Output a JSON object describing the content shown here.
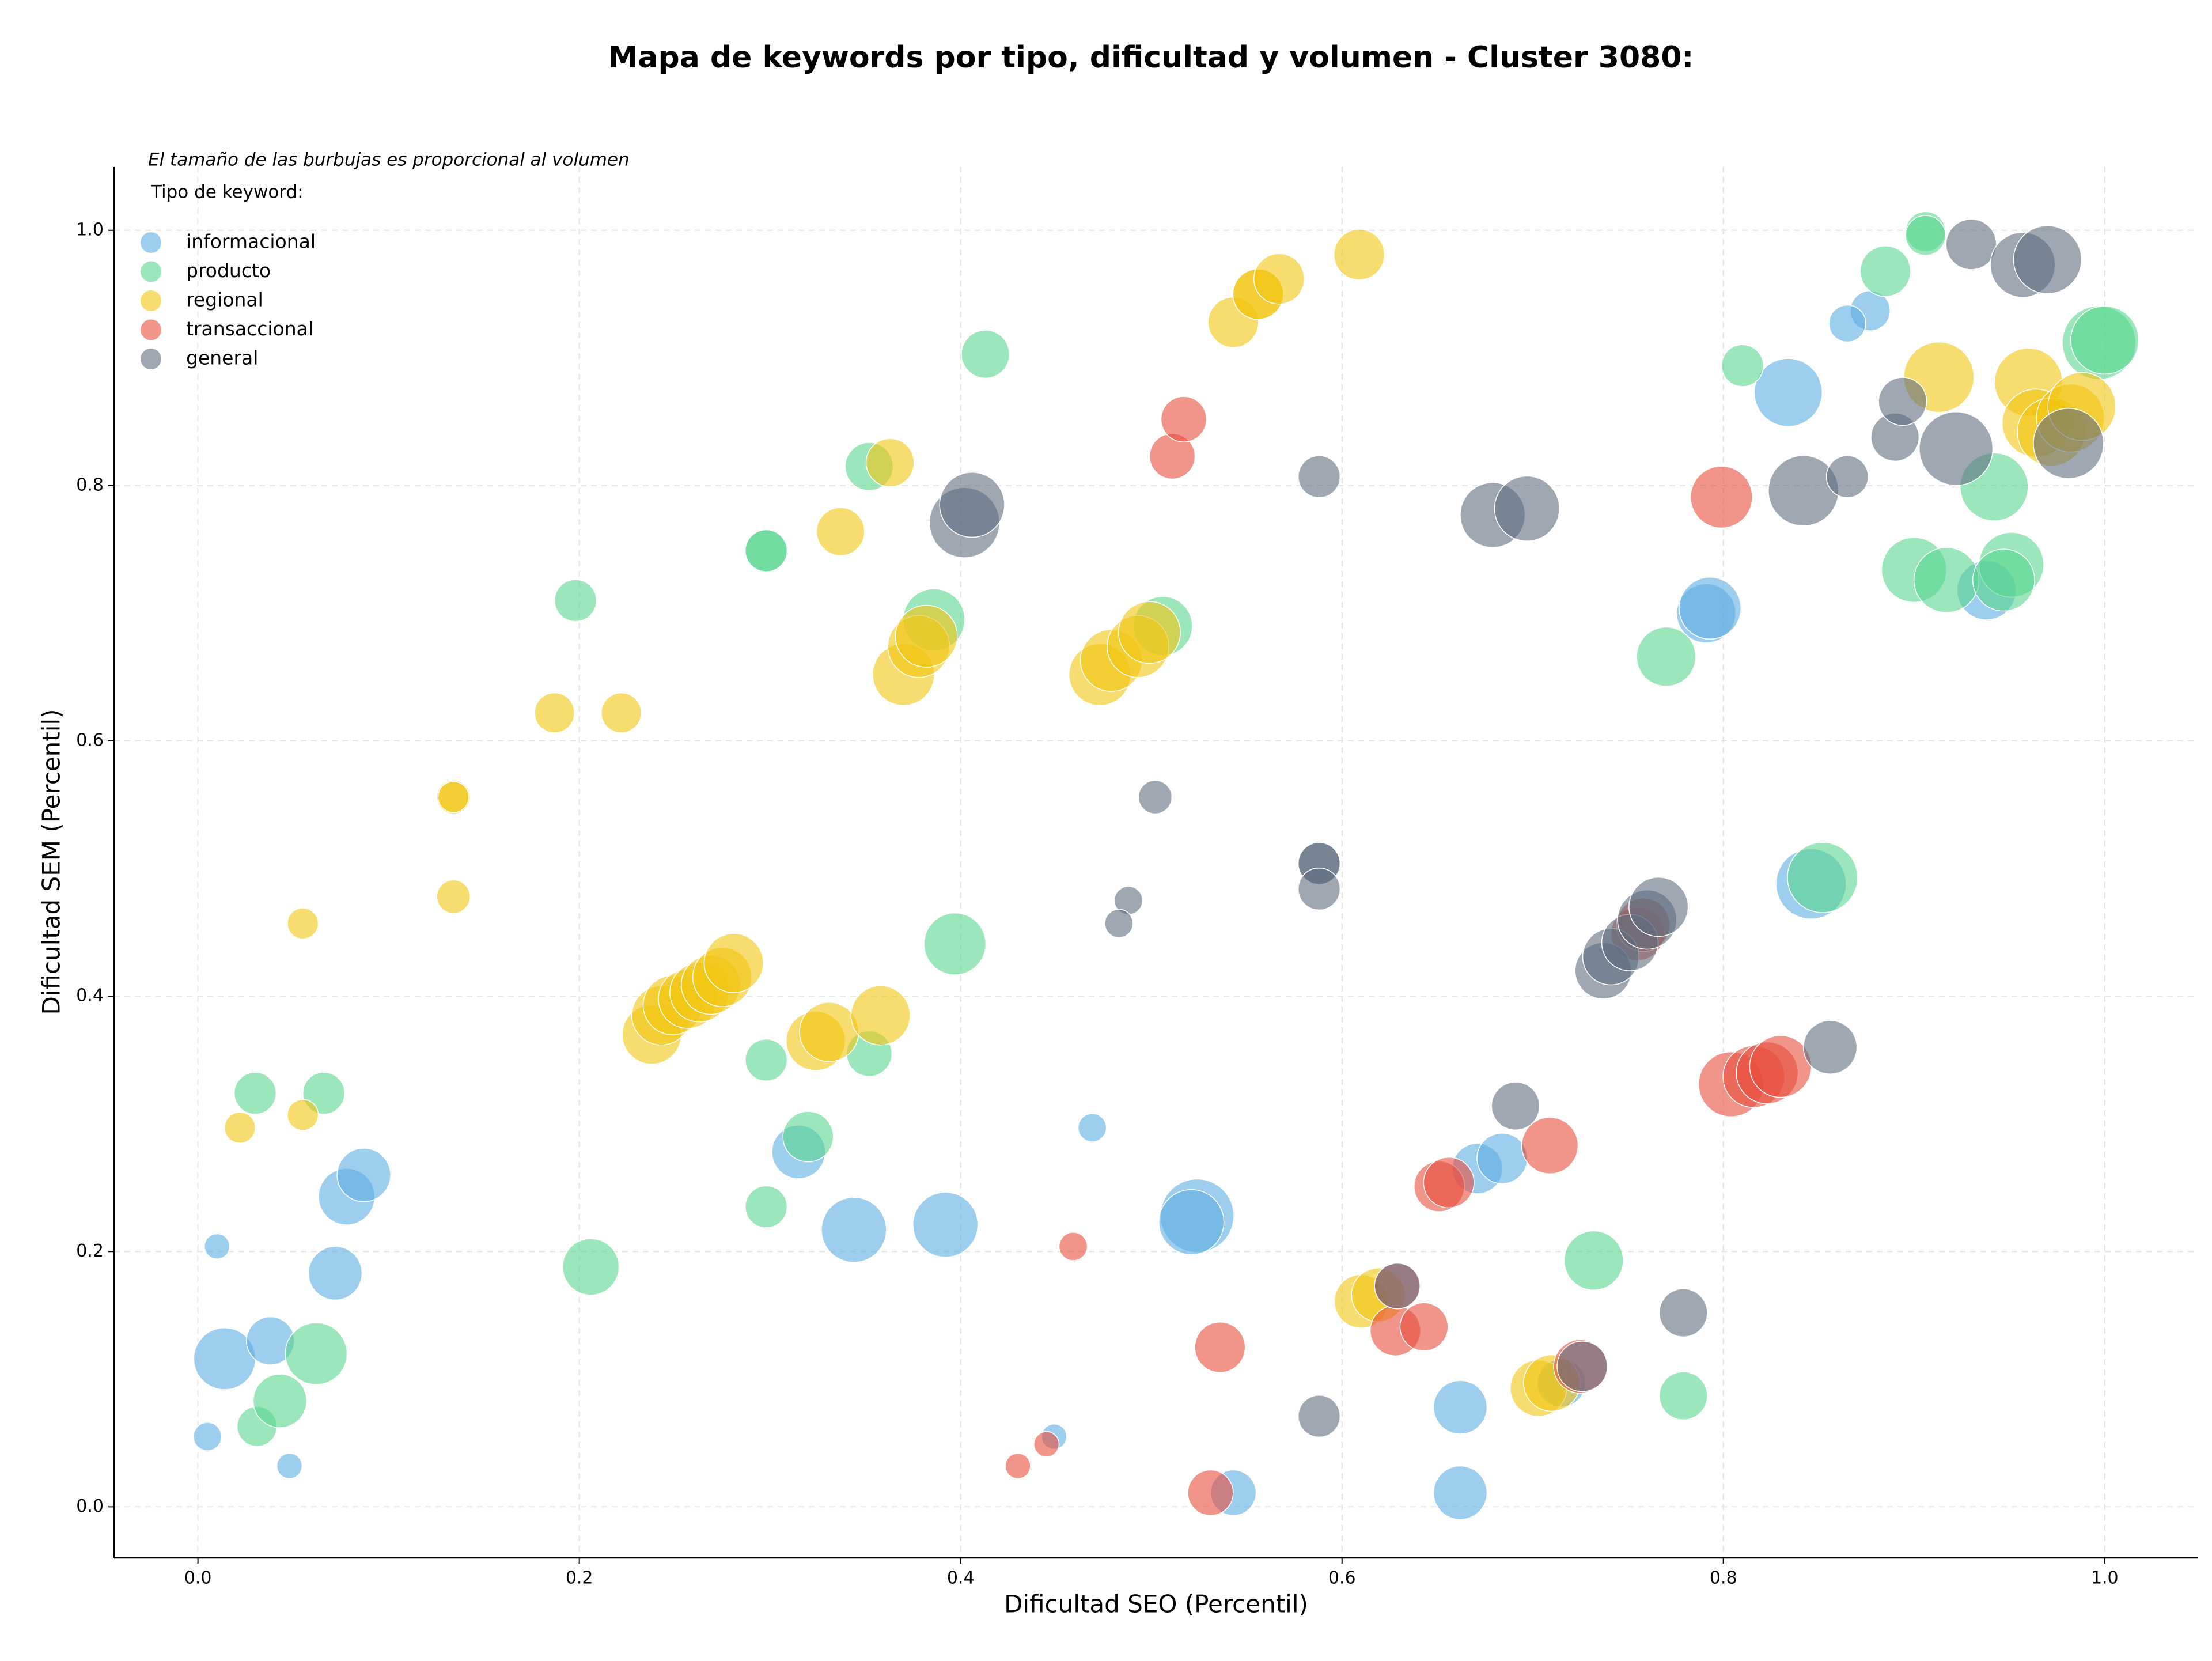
{
  "chart_data": {
    "type": "scatter",
    "title": "Mapa de keywords por tipo, dificultad y volumen - Cluster 3080:",
    "x_label": "Dificultad SEO (Percentil)",
    "y_label": "Dificultad SEM (Percentil)",
    "annotation": "El tamaño de las burbujas es proporcional al volumen",
    "legend_title": "Tipo de keyword:",
    "legend_position": "upper left",
    "grid": true,
    "xlim": [
      -0.044,
      1.049
    ],
    "ylim": [
      -0.04,
      1.05
    ],
    "xticks": [
      {
        "value": 0,
        "label": "0.0"
      },
      0.2,
      0.4,
      0.6,
      0.8,
      {
        "value": 1,
        "label": "1.0"
      }
    ],
    "yticks": [
      {
        "value": 0,
        "label": "0.0"
      },
      0.2,
      0.4,
      0.6,
      0.8,
      {
        "value": 1,
        "label": "1.0"
      }
    ],
    "series": [
      {
        "name": "informacional",
        "color": "#5DADE2",
        "x": [
          0.01,
          0.005,
          0.014,
          0.038,
          0.048,
          0.072,
          0.078,
          0.087,
          0.315,
          0.344,
          0.392,
          0.469,
          0.449,
          0.524,
          0.521,
          0.543,
          0.662,
          0.662,
          0.671,
          0.684,
          0.715,
          0.791,
          0.793,
          0.834,
          0.846,
          0.877,
          0.865,
          0.938
        ],
        "values": [
          0.204,
          0.055,
          0.116,
          0.13,
          0.032,
          0.183,
          0.243,
          0.26,
          0.278,
          0.217,
          0.221,
          0.297,
          0.055,
          0.228,
          0.223,
          0.011,
          0.011,
          0.078,
          0.265,
          0.273,
          0.097,
          0.7,
          0.704,
          0.873,
          0.488,
          0.937,
          0.927,
          0.718
        ],
        "sizes": [
          80,
          100,
          480,
          290,
          80,
          360,
          400,
          360,
          360,
          530,
          530,
          100,
          80,
          680,
          530,
          260,
          360,
          360,
          320,
          320,
          290,
          440,
          480,
          580,
          620,
          200,
          170,
          440
        ]
      },
      {
        "name": "producto",
        "color": "#58D68D",
        "x": [
          0.03,
          0.066,
          0.031,
          0.043,
          0.062,
          0.198,
          0.206,
          0.298,
          0.298,
          0.298,
          0.298,
          0.352,
          0.32,
          0.352,
          0.386,
          0.397,
          0.413,
          0.506,
          0.732,
          0.779,
          0.77,
          0.81,
          0.852,
          0.885,
          0.906,
          0.906,
          0.9,
          0.917,
          0.942,
          0.951,
          0.947,
          0.997,
          1.0
        ],
        "values": [
          0.324,
          0.324,
          0.063,
          0.083,
          0.12,
          0.71,
          0.188,
          0.749,
          0.749,
          0.235,
          0.35,
          0.355,
          0.29,
          0.815,
          0.695,
          0.441,
          0.903,
          0.69,
          0.193,
          0.087,
          0.666,
          0.894,
          0.493,
          0.968,
          0.999,
          0.996,
          0.734,
          0.726,
          0.799,
          0.738,
          0.726,
          0.912,
          0.914
        ],
        "sizes": [
          220,
          220,
          200,
          360,
          480,
          220,
          400,
          220,
          220,
          220,
          220,
          260,
          320,
          290,
          480,
          480,
          290,
          440,
          440,
          290,
          440,
          220,
          620,
          320,
          200,
          200,
          530,
          530,
          580,
          530,
          480,
          680,
          580
        ]
      },
      {
        "name": "regional",
        "color": "#F1C40F",
        "x": [
          0.022,
          0.055,
          0.055,
          0.134,
          0.134,
          0.134,
          0.187,
          0.222,
          0.238,
          0.243,
          0.249,
          0.257,
          0.263,
          0.269,
          0.275,
          0.281,
          0.324,
          0.331,
          0.358,
          0.337,
          0.363,
          0.37,
          0.378,
          0.382,
          0.473,
          0.479,
          0.493,
          0.499,
          0.543,
          0.556,
          0.556,
          0.567,
          0.609,
          0.61,
          0.619,
          0.703,
          0.71,
          0.913,
          0.96,
          0.964,
          0.972,
          0.982,
          0.988
        ],
        "values": [
          0.297,
          0.457,
          0.307,
          0.556,
          0.556,
          0.478,
          0.622,
          0.622,
          0.37,
          0.385,
          0.393,
          0.398,
          0.403,
          0.409,
          0.415,
          0.426,
          0.365,
          0.372,
          0.385,
          0.764,
          0.818,
          0.652,
          0.674,
          0.682,
          0.652,
          0.663,
          0.674,
          0.685,
          0.928,
          0.95,
          0.95,
          0.962,
          0.981,
          0.161,
          0.166,
          0.093,
          0.097,
          0.885,
          0.881,
          0.849,
          0.842,
          0.853,
          0.862
        ],
        "sizes": [
          120,
          120,
          120,
          140,
          120,
          140,
          200,
          200,
          440,
          440,
          440,
          440,
          440,
          440,
          440,
          440,
          440,
          440,
          440,
          290,
          290,
          480,
          480,
          480,
          480,
          480,
          480,
          480,
          320,
          320,
          320,
          320,
          320,
          360,
          360,
          400,
          400,
          620,
          580,
          580,
          580,
          580,
          580
        ]
      },
      {
        "name": "transaccional",
        "color": "#E74C3C",
        "x": [
          0.43,
          0.445,
          0.459,
          0.511,
          0.517,
          0.531,
          0.536,
          0.628,
          0.643,
          0.651,
          0.656,
          0.709,
          0.755,
          0.758,
          0.799,
          0.804,
          0.816,
          0.823,
          0.83,
          0.725,
          0.629
        ],
        "values": [
          0.032,
          0.049,
          0.204,
          0.823,
          0.852,
          0.011,
          0.125,
          0.138,
          0.141,
          0.251,
          0.254,
          0.283,
          0.449,
          0.456,
          0.791,
          0.331,
          0.337,
          0.34,
          0.345,
          0.11,
          0.173
        ],
        "sizes": [
          80,
          80,
          100,
          260,
          260,
          260,
          320,
          320,
          290,
          320,
          320,
          400,
          360,
          360,
          480,
          530,
          480,
          480,
          480,
          360,
          260
        ]
      },
      {
        "name": "general",
        "color": "#5D6D7E",
        "x": [
          0.588,
          0.502,
          0.488,
          0.483,
          0.588,
          0.588,
          0.588,
          0.588,
          0.629,
          0.691,
          0.726,
          0.779,
          0.737,
          0.741,
          0.751,
          0.76,
          0.766,
          0.856,
          0.402,
          0.406,
          0.679,
          0.697,
          0.842,
          0.865,
          0.89,
          0.894,
          0.922,
          0.93,
          0.957,
          0.97,
          0.981
        ],
        "values": [
          0.807,
          0.556,
          0.475,
          0.457,
          0.504,
          0.504,
          0.484,
          0.071,
          0.173,
          0.314,
          0.11,
          0.152,
          0.42,
          0.431,
          0.442,
          0.46,
          0.47,
          0.36,
          0.771,
          0.785,
          0.777,
          0.782,
          0.796,
          0.807,
          0.838,
          0.866,
          0.829,
          0.989,
          0.973,
          0.977,
          0.833
        ],
        "sizes": [
          220,
          140,
          100,
          100,
          220,
          220,
          220,
          220,
          260,
          290,
          320,
          290,
          400,
          400,
          400,
          440,
          440,
          360,
          620,
          530,
          530,
          530,
          620,
          220,
          290,
          290,
          680,
          320,
          530,
          580,
          620
        ]
      }
    ]
  }
}
